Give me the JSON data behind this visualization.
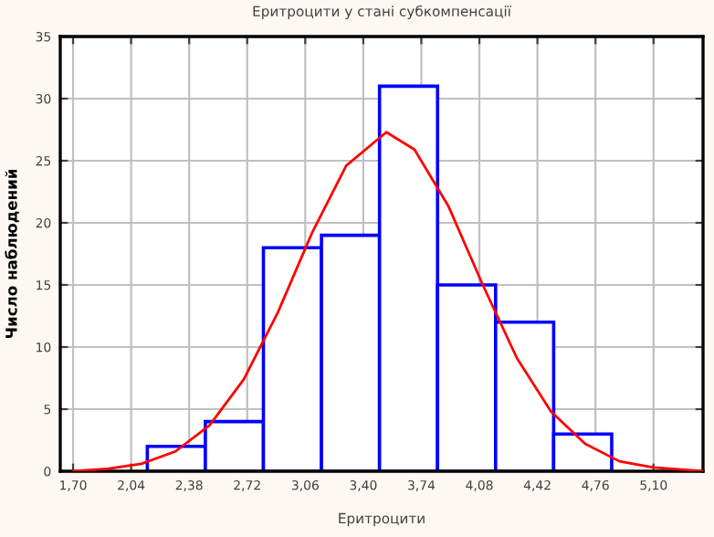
{
  "chart_data": {
    "type": "histogram",
    "title": "Еритроцити у стані субкомпенсації",
    "xlabel": "Еритроцити",
    "ylabel": "Число наблюдений",
    "bins": [
      2.135,
      2.475,
      2.815,
      3.155,
      3.495,
      3.835,
      4.175,
      4.515,
      4.855
    ],
    "values": [
      2,
      4,
      18,
      19,
      31,
      15,
      12,
      3
    ],
    "color": "#0000ff",
    "series": [
      {
        "type": "line",
        "color": "#ff0000",
        "x": [
          1.7,
          1.9,
          2.1,
          2.3,
          2.5,
          2.7,
          2.9,
          3.1,
          3.3,
          3.535,
          3.7,
          3.9,
          4.1,
          4.3,
          4.5,
          4.7,
          4.9,
          5.1,
          5.3,
          5.39
        ],
        "values": [
          0.0,
          0.2,
          0.6,
          1.6,
          3.7,
          7.4,
          12.8,
          19.2,
          24.6,
          27.3,
          25.9,
          21.3,
          15.0,
          9.1,
          4.8,
          2.2,
          0.8,
          0.3,
          0.1,
          0.0
        ]
      }
    ],
    "xlim": [
      1.625,
      5.39
    ],
    "xticks": [
      {
        "value": 1.7,
        "label": "1,70"
      },
      {
        "value": 2.04,
        "label": "2,04"
      },
      {
        "value": 2.38,
        "label": "2,38"
      },
      {
        "value": 2.72,
        "label": "2,72"
      },
      {
        "value": 3.06,
        "label": "3,06"
      },
      {
        "value": 3.4,
        "label": "3,40"
      },
      {
        "value": 3.74,
        "label": "3,74"
      },
      {
        "value": 4.08,
        "label": "4,08"
      },
      {
        "value": 4.42,
        "label": "4,42"
      },
      {
        "value": 4.76,
        "label": "4,76"
      },
      {
        "value": 5.1,
        "label": "5,10"
      }
    ],
    "ylim": [
      0,
      35
    ],
    "yticks": [
      0,
      5,
      10,
      15,
      20,
      25,
      30,
      35
    ],
    "grid": true
  }
}
